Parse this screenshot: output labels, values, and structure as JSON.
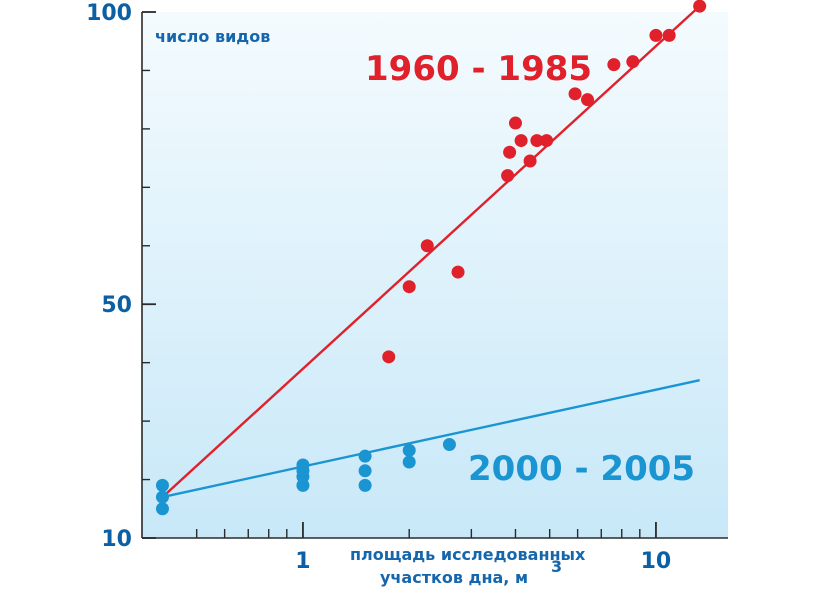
{
  "chart_data": {
    "type": "scatter",
    "title": "",
    "ylabel": "число видов",
    "xlabel_lines": [
      "площадь исследованных",
      "участков дна, м"
    ],
    "xlabel_superscript": "3",
    "x_scale": "log",
    "xlim": [
      0.35,
      16
    ],
    "ylim": [
      10,
      100
    ],
    "y_ticks": [
      10,
      50,
      100
    ],
    "y_tick_labels": [
      "10",
      "50",
      "100"
    ],
    "y_minor_ticks": [
      20,
      30,
      40,
      60,
      70,
      80,
      90
    ],
    "x_ticks": [
      1,
      10
    ],
    "x_tick_labels": [
      "1",
      "10"
    ],
    "x_minor_ticks": [
      0.5,
      0.6,
      0.7,
      0.8,
      0.9,
      2,
      3,
      4,
      5,
      6,
      7,
      8,
      9
    ],
    "grid": false,
    "series": [
      {
        "name": "1960 - 1985",
        "color": "#e0202a",
        "points": [
          [
            1.75,
            41
          ],
          [
            2.0,
            53
          ],
          [
            2.25,
            60
          ],
          [
            2.75,
            55.5
          ],
          [
            3.8,
            72
          ],
          [
            3.85,
            76
          ],
          [
            4.0,
            81
          ],
          [
            4.15,
            78
          ],
          [
            4.4,
            74.5
          ],
          [
            4.6,
            78
          ],
          [
            4.9,
            78
          ],
          [
            5.9,
            86
          ],
          [
            6.4,
            85
          ],
          [
            7.6,
            91
          ],
          [
            8.6,
            91.5
          ],
          [
            10.0,
            96
          ],
          [
            10.9,
            96
          ],
          [
            13.3,
            101
          ]
        ],
        "fit_line": [
          [
            0.4,
            17
          ],
          [
            13.3,
            101
          ]
        ]
      },
      {
        "name": "2000 - 2005",
        "color": "#1a95d2",
        "points": [
          [
            0.4,
            15
          ],
          [
            0.4,
            17
          ],
          [
            0.4,
            19
          ],
          [
            1.0,
            19
          ],
          [
            1.0,
            20.5
          ],
          [
            1.0,
            21.5
          ],
          [
            1.0,
            22.5
          ],
          [
            1.5,
            19
          ],
          [
            1.5,
            21.5
          ],
          [
            1.5,
            24
          ],
          [
            2.0,
            23
          ],
          [
            2.0,
            25
          ],
          [
            2.6,
            26
          ]
        ],
        "fit_line": [
          [
            0.4,
            17
          ],
          [
            13.3,
            37
          ]
        ]
      }
    ]
  }
}
